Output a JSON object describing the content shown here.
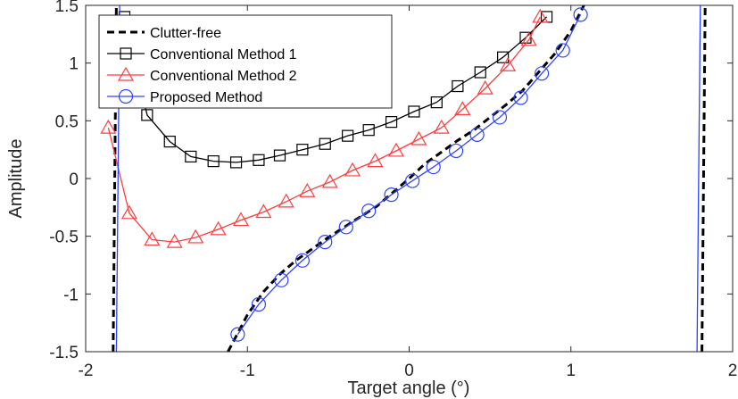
{
  "chart_data": {
    "type": "line",
    "title": "",
    "xlabel": "Target angle (°)",
    "ylabel": "Amplitude",
    "xlim": [
      -2,
      2
    ],
    "ylim": [
      -1.5,
      1.5
    ],
    "xticks": [
      -2,
      -1,
      0,
      1,
      2
    ],
    "xtick_labels": [
      "-2",
      "-1",
      "0",
      "1",
      "2"
    ],
    "yticks": [
      -1.5,
      -1,
      -0.5,
      0,
      0.5,
      1,
      1.5
    ],
    "ytick_labels": [
      "-1.5",
      "-1",
      "-0.5",
      "0",
      "0.5",
      "1",
      "1.5"
    ],
    "grid": false,
    "legend_position": "top-left",
    "series": [
      {
        "name": "Clutter-free",
        "color": "#000000",
        "line_style": "dashed",
        "marker": "none",
        "segments": [
          [
            [
              -1.12,
              -1.5
            ],
            [
              -1.0,
              -1.18
            ],
            [
              -0.9,
              -0.98
            ],
            [
              -0.8,
              -0.83
            ],
            [
              -0.7,
              -0.71
            ],
            [
              -0.6,
              -0.61
            ],
            [
              -0.5,
              -0.51
            ],
            [
              -0.4,
              -0.42
            ],
            [
              -0.3,
              -0.33
            ],
            [
              -0.2,
              -0.24
            ],
            [
              -0.1,
              -0.12
            ],
            [
              0,
              0
            ],
            [
              0.1,
              0.13
            ],
            [
              0.2,
              0.23
            ],
            [
              0.3,
              0.33
            ],
            [
              0.4,
              0.42
            ],
            [
              0.5,
              0.53
            ],
            [
              0.6,
              0.64
            ],
            [
              0.7,
              0.76
            ],
            [
              0.8,
              0.92
            ],
            [
              0.9,
              1.08
            ],
            [
              1.0,
              1.28
            ],
            [
              1.08,
              1.5
            ]
          ],
          [
            [
              -1.83,
              -1.5
            ],
            [
              -1.82,
              0
            ],
            [
              -1.81,
              1.5
            ]
          ],
          [
            [
              1.81,
              -1.5
            ],
            [
              1.82,
              0
            ],
            [
              1.83,
              1.5
            ]
          ]
        ]
      },
      {
        "name": "Conventional Method 1",
        "color": "#000000",
        "line_style": "solid",
        "marker": "square",
        "x": [
          -1.76,
          -1.62,
          -1.48,
          -1.35,
          -1.21,
          -1.07,
          -0.93,
          -0.8,
          -0.66,
          -0.52,
          -0.38,
          -0.25,
          -0.11,
          0.03,
          0.17,
          0.3,
          0.44,
          0.58,
          0.72,
          0.85
        ],
        "y": [
          1.4,
          0.55,
          0.32,
          0.19,
          0.15,
          0.14,
          0.16,
          0.2,
          0.25,
          0.3,
          0.37,
          0.42,
          0.49,
          0.58,
          0.66,
          0.8,
          0.92,
          1.05,
          1.22,
          1.4
        ]
      },
      {
        "name": "Conventional Method 2",
        "color": "#ff3c3c",
        "line_style": "solid",
        "marker": "triangle",
        "x": [
          -1.86,
          -1.73,
          -1.59,
          -1.45,
          -1.32,
          -1.18,
          -1.04,
          -0.9,
          -0.76,
          -0.63,
          -0.49,
          -0.35,
          -0.21,
          -0.08,
          0.06,
          0.2,
          0.33,
          0.47,
          0.61,
          0.74,
          0.81
        ],
        "y": [
          0.44,
          -0.3,
          -0.53,
          -0.55,
          -0.51,
          -0.44,
          -0.36,
          -0.29,
          -0.2,
          -0.11,
          -0.03,
          0.07,
          0.15,
          0.24,
          0.34,
          0.44,
          0.6,
          0.78,
          0.98,
          1.2,
          1.4
        ]
      },
      {
        "name": "Proposed Method",
        "color": "#2c43ff",
        "line_style": "solid",
        "marker": "circle",
        "x": [
          -1.06,
          -0.93,
          -0.79,
          -0.66,
          -0.52,
          -0.39,
          -0.25,
          -0.11,
          0.02,
          0.15,
          0.29,
          0.42,
          0.56,
          0.69,
          0.82,
          0.95,
          1.06
        ],
        "y": [
          -1.35,
          -1.09,
          -0.88,
          -0.71,
          -0.55,
          -0.42,
          -0.28,
          -0.14,
          -0.02,
          0.1,
          0.24,
          0.38,
          0.53,
          0.7,
          0.91,
          1.11,
          1.42
        ],
        "extra_segments": [
          [
            [
              -1.81,
              -1.5
            ],
            [
              -1.8,
              0
            ],
            [
              -1.79,
              1.5
            ]
          ],
          [
            [
              1.78,
              -1.5
            ],
            [
              1.79,
              0
            ],
            [
              1.8,
              1.5
            ]
          ]
        ]
      }
    ]
  }
}
